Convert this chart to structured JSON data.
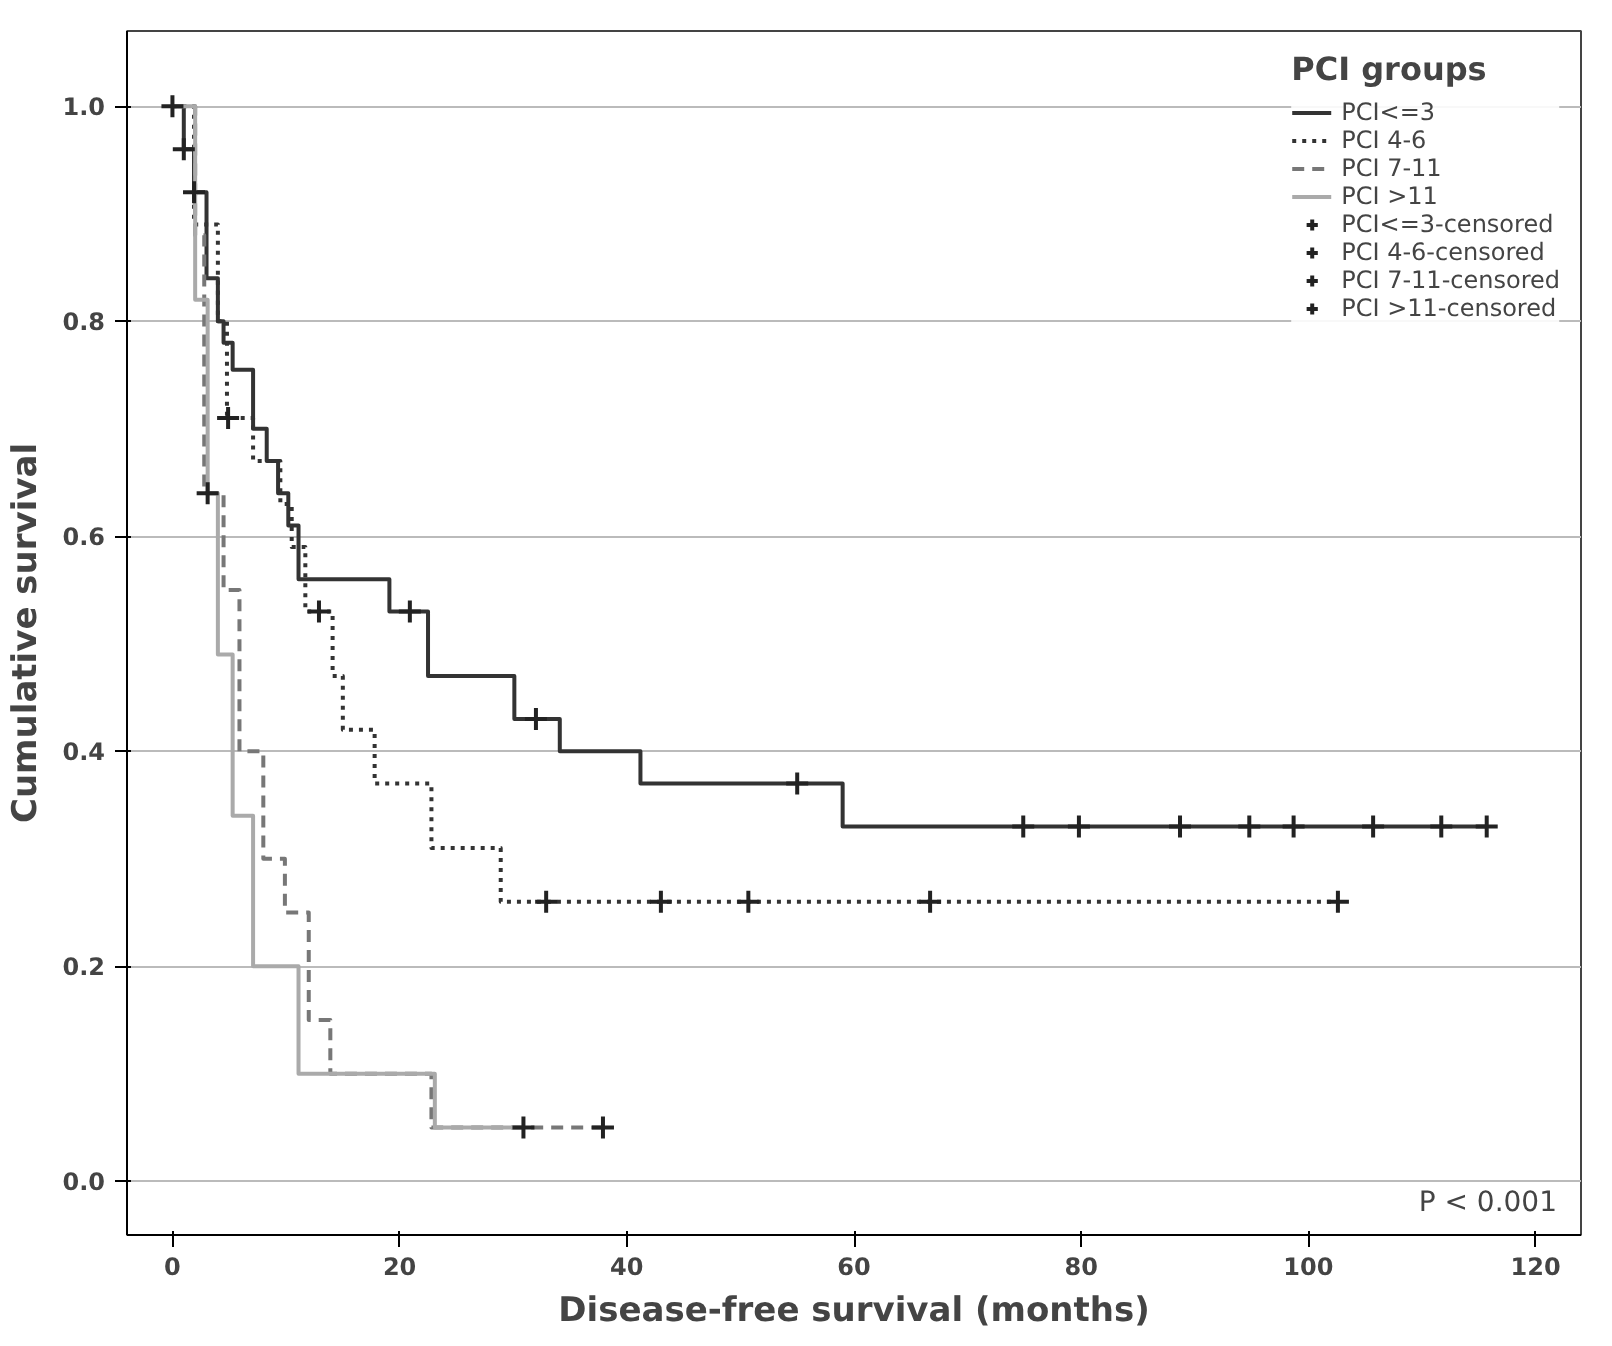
{
  "chart_data": {
    "type": "step",
    "xlabel": "Disease-free survival (months)",
    "ylabel": "Cumulative survival",
    "legend_title": "PCI groups",
    "xlim": [
      -4,
      124
    ],
    "ylim": [
      -0.05,
      1.07
    ],
    "xticks": [
      0,
      20,
      40,
      60,
      80,
      100,
      120
    ],
    "yticks": [
      {
        "value": 0,
        "label": "0.0"
      },
      {
        "value": 0.2,
        "label": "0.2"
      },
      {
        "value": 0.4,
        "label": "0.4"
      },
      {
        "value": 0.6,
        "label": "0.6"
      },
      {
        "value": 0.8,
        "label": "0.8"
      },
      {
        "value": 1,
        "label": "1.0"
      }
    ],
    "grid": "y",
    "legend": "top right",
    "annotations": [
      "P < 0.001"
    ],
    "series": [
      {
        "name": "PCI<=3",
        "color": "#333333",
        "line_style": "solid",
        "marker": "none",
        "x": [
          0,
          1,
          1.9,
          3.0,
          4.0,
          4.5,
          5.3,
          7.1,
          8.3,
          9.3,
          10.2,
          11.1,
          19.1,
          22.5,
          30.1,
          34.1,
          41.2,
          59.0,
          115.7
        ],
        "values": [
          1.0,
          0.96,
          0.92,
          0.84,
          0.8,
          0.78,
          0.755,
          0.7,
          0.67,
          0.64,
          0.61,
          0.56,
          0.53,
          0.47,
          0.43,
          0.4,
          0.37,
          0.33,
          0.33
        ]
      },
      {
        "name": "PCI 4-6",
        "color": "#333333",
        "line_style": "dotted",
        "marker": "none",
        "x": [
          0,
          1.9,
          4.0,
          4.8,
          7.1,
          9.5,
          10.5,
          11.7,
          14.1,
          15.0,
          17.8,
          22.8,
          28.9,
          102.6
        ],
        "values": [
          1.0,
          0.89,
          0.8,
          0.71,
          0.67,
          0.63,
          0.59,
          0.53,
          0.47,
          0.42,
          0.37,
          0.31,
          0.26,
          0.26
        ]
      },
      {
        "name": "PCI 7-11",
        "color": "#777777",
        "line_style": "dashed",
        "marker": "none",
        "x": [
          0,
          2.0,
          2.8,
          4.5,
          5.9,
          8.0,
          9.9,
          12.0,
          13.9,
          22.8,
          37.9
        ],
        "values": [
          1.0,
          0.88,
          0.64,
          0.55,
          0.4,
          0.3,
          0.25,
          0.15,
          0.1,
          0.05,
          0.05
        ]
      },
      {
        "name": "PCI >11",
        "color": "#aaaaaa",
        "line_style": "solid",
        "marker": "none",
        "x": [
          0,
          2.0,
          3.1,
          4.0,
          5.3,
          7.1,
          11.1,
          23.1,
          30.9
        ],
        "values": [
          1.0,
          0.82,
          0.64,
          0.49,
          0.34,
          0.2,
          0.1,
          0.05,
          0.05
        ]
      },
      {
        "name": "PCI<=3-censored",
        "type": "scatter",
        "color": "#222222",
        "marker": "cross",
        "x": [
          0,
          1,
          1.9,
          20.9,
          32.0,
          55.0,
          74.9,
          79.8,
          88.7,
          94.8,
          98.7,
          105.7,
          111.7,
          115.7
        ],
        "values": [
          1.0,
          0.96,
          0.92,
          0.53,
          0.43,
          0.37,
          0.33,
          0.33,
          0.33,
          0.33,
          0.33,
          0.33,
          0.33,
          0.33
        ]
      },
      {
        "name": "PCI 4-6-censored",
        "type": "scatter",
        "color": "#222222",
        "marker": "cross",
        "x": [
          4.9,
          12.9,
          32.9,
          43.0,
          50.7,
          66.7,
          102.6
        ],
        "values": [
          0.71,
          0.53,
          0.26,
          0.26,
          0.26,
          0.26,
          0.26
        ]
      },
      {
        "name": "PCI 7-11-censored",
        "type": "scatter",
        "color": "#222222",
        "marker": "cross",
        "x": [
          37.9
        ],
        "values": [
          0.05
        ]
      },
      {
        "name": "PCI >11-censored",
        "type": "scatter",
        "color": "#222222",
        "marker": "cross",
        "x": [
          3.1,
          30.9
        ],
        "values": [
          0.64,
          0.05
        ]
      }
    ]
  }
}
